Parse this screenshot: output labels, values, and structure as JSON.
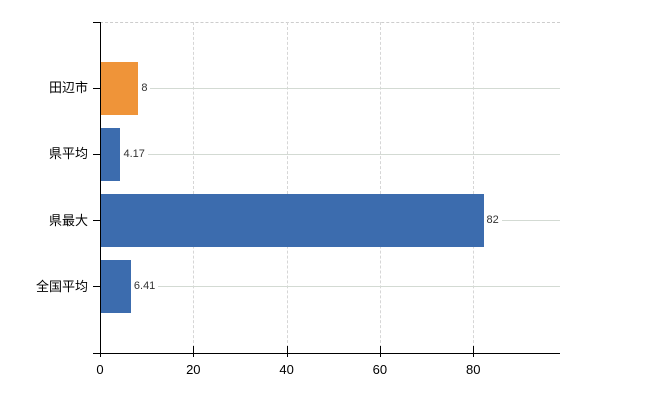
{
  "chart_data": {
    "type": "bar",
    "orientation": "horizontal",
    "title": "",
    "xlabel": "",
    "ylabel": "",
    "categories": [
      "田辺市",
      "県平均",
      "県最大",
      "全国平均"
    ],
    "values": [
      8,
      4.17,
      82,
      6.41
    ],
    "value_labels": [
      "8",
      "4.17",
      "82",
      "6.41"
    ],
    "bar_colors": [
      "#ef9439",
      "#3c6cae",
      "#3c6cae",
      "#3c6cae"
    ],
    "x_ticks": [
      0,
      20,
      40,
      60,
      80
    ],
    "x_tick_labels": [
      "0",
      "20",
      "40",
      "60",
      "80"
    ],
    "xlim": [
      0,
      98.6
    ],
    "grid": true,
    "legend_position": "none"
  },
  "colors": {
    "highlight_bar": "#ef9439",
    "default_bar": "#3c6cae",
    "axis": "#000000",
    "vertical_gridline": "#d6d6d6",
    "category_gridline": "#d3dad3",
    "value_label_text": "#333333",
    "background": "#ffffff"
  }
}
